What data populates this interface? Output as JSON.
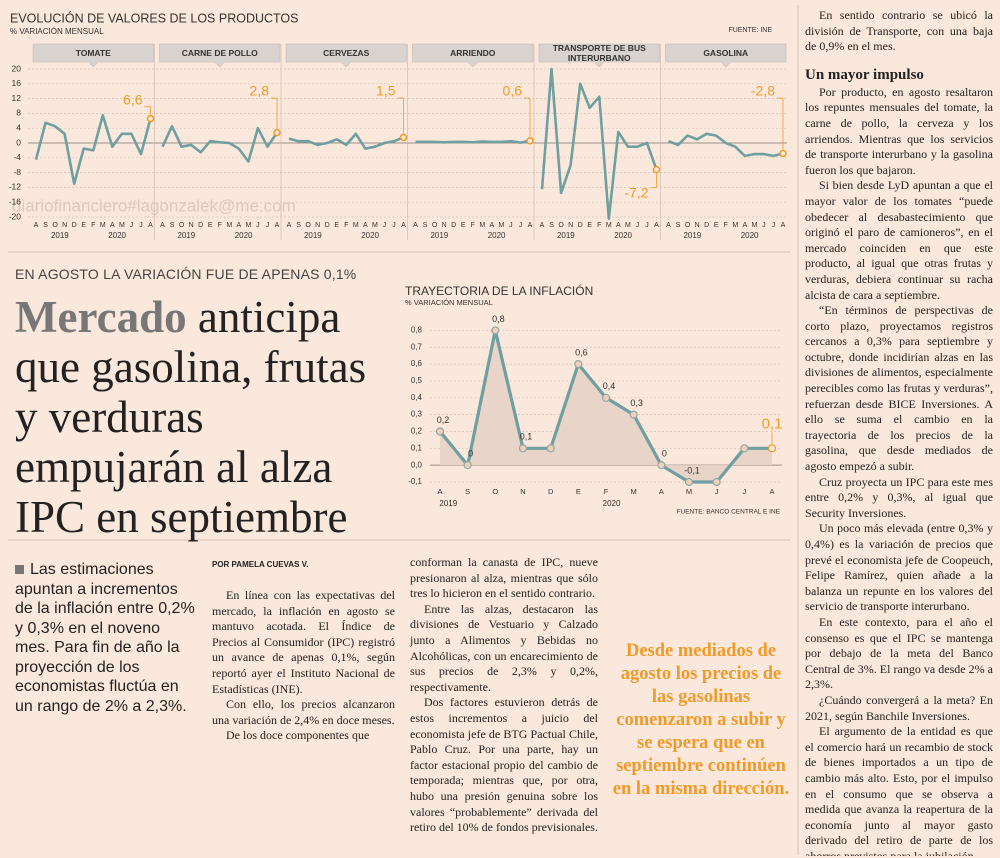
{
  "products_chart": {
    "type": "line",
    "title": "EVOLUCIÓN DE VALORES DE LOS PRODUCTOS",
    "subtitle": "% VARIACIÓN MENSUAL",
    "source": "FUENTE: INE",
    "categories": [
      "A",
      "S",
      "O",
      "N",
      "D",
      "E",
      "F",
      "M",
      "A",
      "M",
      "J",
      "J",
      "A"
    ],
    "years": [
      "2019",
      "2020"
    ],
    "ylim": [
      -20,
      20
    ],
    "yticks": [
      20,
      16,
      12,
      8,
      4,
      0,
      -4,
      -8,
      -12,
      -16,
      -20
    ],
    "grid": true,
    "color": "#6f9fa1",
    "highlight_color": "#f09a2a",
    "panels": [
      {
        "name": "TOMATE",
        "values": [
          -4.5,
          5.5,
          4.5,
          2.5,
          -11,
          -1.5,
          -2,
          7.5,
          -1,
          2.5,
          2.5,
          -3,
          6.6
        ],
        "value_labels": [
          null,
          null,
          null,
          null,
          null,
          null,
          null,
          null,
          null,
          null,
          null,
          null,
          "6,6"
        ]
      },
      {
        "name": "CARNE DE POLLO",
        "values": [
          -1,
          4.5,
          -1,
          -0.5,
          -2.5,
          0.5,
          0.2,
          0,
          -1.5,
          -5,
          4,
          -1,
          2.8
        ],
        "value_labels": [
          null,
          null,
          null,
          null,
          null,
          null,
          null,
          null,
          null,
          null,
          null,
          null,
          "2,8"
        ]
      },
      {
        "name": "CERVEZAS",
        "values": [
          1.2,
          0.5,
          0.5,
          -0.5,
          0,
          1,
          -0.5,
          2.5,
          -1.5,
          -1,
          0,
          0.5,
          1.5
        ],
        "value_labels": [
          null,
          null,
          null,
          null,
          null,
          null,
          null,
          null,
          null,
          null,
          null,
          null,
          "1,5"
        ]
      },
      {
        "name": "ARRIENDO",
        "values": [
          0.3,
          0.3,
          0.3,
          0.2,
          0.3,
          0.3,
          0.2,
          0.4,
          0.3,
          0.3,
          0.5,
          0.1,
          0.6
        ],
        "value_labels": [
          null,
          null,
          null,
          null,
          null,
          null,
          null,
          null,
          null,
          null,
          null,
          null,
          "0,6"
        ]
      },
      {
        "name": "TRANSPORTE DE BUS INTERURBANO",
        "values": [
          -12.5,
          20,
          -13.5,
          -6,
          16,
          9.5,
          12.5,
          -20.5,
          3,
          -1,
          -1,
          0,
          -7.2
        ],
        "value_labels": [
          null,
          null,
          null,
          null,
          null,
          null,
          null,
          null,
          null,
          null,
          null,
          null,
          "-7,2"
        ]
      },
      {
        "name": "GASOLINA",
        "values": [
          0.5,
          -0.5,
          2,
          1,
          2.5,
          2,
          0,
          -1,
          -3.5,
          -3,
          -3,
          -3.5,
          -2.8
        ],
        "value_labels": [
          null,
          null,
          null,
          null,
          null,
          null,
          null,
          null,
          null,
          null,
          null,
          null,
          "-2,8"
        ]
      }
    ]
  },
  "inflation_chart": {
    "type": "area",
    "title": "TRAYECTORIA DE LA INFLACIÓN",
    "subtitle": "% VARIACIÓN MENSUAL",
    "source": "FUENTE: BANCO CENTRAL E INE",
    "categories": [
      "A",
      "S",
      "O",
      "N",
      "D",
      "E",
      "F",
      "M",
      "A",
      "M",
      "J",
      "J",
      "A"
    ],
    "years": [
      "2019",
      "2020"
    ],
    "ylim": [
      -0.1,
      0.85
    ],
    "yticks": [
      {
        "value": 0.8,
        "label": "0,8"
      },
      {
        "value": 0.7,
        "label": "0,7"
      },
      {
        "value": 0.6,
        "label": "0,6"
      },
      {
        "value": 0.5,
        "label": "0,5"
      },
      {
        "value": 0.4,
        "label": "0,4"
      },
      {
        "value": 0.3,
        "label": "0,3"
      },
      {
        "value": 0.2,
        "label": "0,2"
      },
      {
        "value": 0.1,
        "label": "0,1"
      },
      {
        "value": 0,
        "label": "0,0"
      },
      {
        "value": -0.1,
        "label": "-0,1"
      }
    ],
    "grid": true,
    "color": "#6f9fa1",
    "fill": "#e8d4c9",
    "highlight_color": "#f09a2a",
    "values": [
      0.2,
      0,
      0.8,
      0.1,
      0.1,
      0.6,
      0.4,
      0.3,
      0,
      -0.1,
      -0.1,
      0.1,
      0.1
    ],
    "value_labels": [
      "0,2",
      "0",
      "0,8",
      "0,1",
      null,
      "0,6",
      "0,4",
      "0,3",
      "0",
      "-0,1",
      null,
      null,
      "0,1"
    ]
  },
  "watermark": "diariofinanciero#lagonzalek@me.com",
  "article": {
    "kicker": "EN AGOSTO LA VARIACIÓN FUE DE APENAS 0,1%",
    "headline_lead": "Mercado",
    "headline_rest": "anticipa que gasolina, frutas y verduras empujarán al alza IPC en septiembre",
    "summary": "Las estimaciones apuntan a incrementos de la inflación entre 0,2% y 0,3% en el noveno mes. Para fin de año la proyección de los economistas fluctúa en un rango de 2% a 2,3%.",
    "byline": "POR PAMELA CUEVAS V.",
    "column1": [
      "En línea con las expectativas del mercado, la inflación en agosto se mantuvo acotada. El Índice de Precios al Consumidor (IPC) registró un avance de apenas 0,1%, según reportó ayer el Instituto Nacional de Estadísticas (INE).",
      "Con ello, los precios alcanzaron una variación de 2,4% en doce meses.",
      "De los doce componentes que"
    ],
    "column2": [
      "conforman la canasta de IPC, nueve presionaron al alza, mientras que sólo tres lo hicieron en el sentido contrario.",
      "Entre las alzas, destacaron las divisiones de Vestuario y Calzado junto a Alimentos y Bebidas no Alcohólicas, con un encarecimiento de sus precios de 2,3% y 0,2%, respectivamente.",
      "Dos factores estuvieron detrás de estos incrementos a juicio del economista jefe de BTG Pactual Chile, Pablo Cruz. Por una parte, hay un factor estacional propio del cambio de temporada; mientras que, por otra, hubo una presión genuina sobre los valores “probablemente” derivada del retiro del 10% de fondos previsionales."
    ],
    "pull_quote": "Desde mediados de agosto los precios de las gasolinas comenzaron a subir y se espera que en septiembre continúen en la misma dirección.",
    "column3_intro": "En sentido contrario se ubicó la división de Transporte, con una baja de 0,9% en el mes.",
    "subhead": "Un mayor impulso",
    "column3": [
      "Por producto, en agosto resaltaron los repuntes mensuales del tomate, la carne de pollo, la cerveza y los arriendos. Mientras que los servicios de transporte interurbano y la gasolina fueron los que bajaron.",
      "Si bien desde LyD apuntan a que el mayor valor de los tomates “puede obedecer al desabastecimiento que originó el paro de camioneros”, en el mercado coinciden en que este producto, al igual que otras frutas y verduras, debiera continuar su racha alcista de cara a septiembre.",
      "“En términos de perspectivas de corto plazo, proyectamos registros cercanos a 0,3% para septiembre y octubre, donde incidirían alzas en las divisiones de alimentos, especialmente perecibles como las frutas y verduras”, refuerzan desde BICE Inversiones. A ello se suma el cambio en la trayectoria de los precios de la gasolina, que desde mediados de agosto empezó a subir.",
      "Cruz proyecta un IPC para este mes entre 0,2% y 0,3%, al igual que Security Inversiones.",
      "Un poco más elevada (entre 0,3% y 0,4%) es la variación de precios que prevé el economista jefe de Coopeuch, Felipe Ramírez, quien añade a la balanza un repunte en los valores del servicio de transporte interurbano.",
      "En este contexto, para el año el consenso es que el IPC se mantenga por debajo de la meta del Banco Central de 3%. El rango va desde 2% a 2,3%.",
      "¿Cuándo convergerá a la meta? En 2021, según Banchile Inversiones.",
      "El argumento de la entidad es que el comercio hará un recambio de stock de bienes importados a un tipo de cambio más alto. Esto, por el impulso en el consumo que se observa a medida que avanza la reapertura de la economía junto al mayor gasto derivado del retiro de parte de los ahorros previstos para la jubilación."
    ]
  }
}
